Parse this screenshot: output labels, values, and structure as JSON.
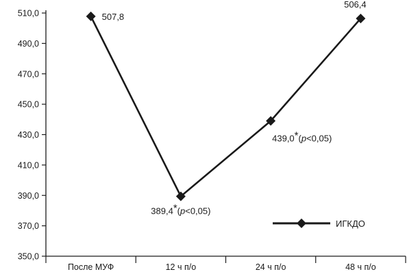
{
  "chart_data": {
    "type": "line",
    "categories": [
      "После МУФ",
      "12 ч п/о",
      "24 ч п/о",
      "48 ч п/о"
    ],
    "series": [
      {
        "name": "ИГКДО",
        "values": [
          507.8,
          389.4,
          439.0,
          506.4
        ],
        "data_labels": [
          {
            "value": "507,8",
            "star": "",
            "p": "",
            "tail": ""
          },
          {
            "value": "389,4",
            "star": "*",
            "p": "p",
            "tail": "<0,05)"
          },
          {
            "value": "439,0",
            "star": "*",
            "p": "p",
            "tail": "<0,05)"
          },
          {
            "value": "506,4",
            "star": "",
            "p": "",
            "tail": ""
          }
        ]
      }
    ],
    "ylim": [
      350,
      510
    ],
    "yticks": [
      350,
      370,
      390,
      410,
      430,
      450,
      470,
      490,
      510
    ],
    "ytick_labels": [
      "350,0",
      "370,0",
      "390,0",
      "410,0",
      "430,0",
      "450,0",
      "470,0",
      "490,0",
      "510,0"
    ],
    "xlabel": "",
    "ylabel": "",
    "title": "",
    "grid": false,
    "legend": {
      "position": "bottom-right",
      "marker": "diamond"
    },
    "colors": {
      "line": "#1a1a1a",
      "axis": "#1a1a1a"
    }
  }
}
